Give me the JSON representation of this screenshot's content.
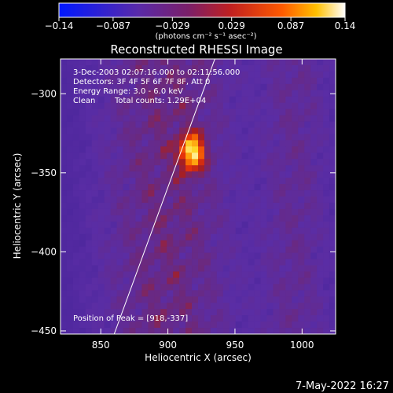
{
  "chart_data": {
    "type": "heatmap",
    "title": "Reconstructed RHESSI Image",
    "xlabel": "Heliocentric X (arcsec)",
    "ylabel": "Heliocentric Y (arcsec)",
    "xlim": [
      820,
      1025
    ],
    "ylim": [
      -452,
      -278
    ],
    "x_ticks": [
      850,
      900,
      950,
      1000
    ],
    "y_ticks": [
      -450,
      -400,
      -350,
      -300
    ],
    "x_tick_labels": [
      "850",
      "900",
      "950",
      "1000"
    ],
    "y_tick_labels": [
      "−450",
      "−400",
      "−350",
      "−300"
    ],
    "colorbar": {
      "range": [
        -0.14,
        0.14
      ],
      "ticks": [
        -0.14,
        -0.087,
        -0.029,
        0.029,
        0.087,
        0.14
      ],
      "tick_labels": [
        "−0.14",
        "−0.087",
        "−0.029",
        "0.029",
        "0.087",
        "0.14"
      ],
      "units": "(photons cm⁻² s⁻¹ asec⁻²)",
      "colormap": "blue-purple-red-yellow-white"
    },
    "annotations": {
      "time_range": "3-Dec-2003 02:07:16.000 to 02:11:56.000",
      "detectors": "Detectors: 3F 4F 5F 6F 7F 8F, Att 0",
      "energy": "Energy Range: 3.0 - 6.0 keV",
      "method": "Clean",
      "counts": "Total counts: 1.29E+04",
      "peak": "Position of Peak = [918,-337]"
    },
    "peak": {
      "x": 918,
      "y": -337,
      "value": 0.14
    },
    "limb_line": [
      [
        860,
        -452
      ],
      [
        935,
        -278
      ]
    ],
    "grid": false,
    "legend": "none"
  },
  "footer": {
    "timestamp": "7-May-2022 16:27"
  },
  "colors": {
    "background": "#000000",
    "text": "#ffffff"
  }
}
